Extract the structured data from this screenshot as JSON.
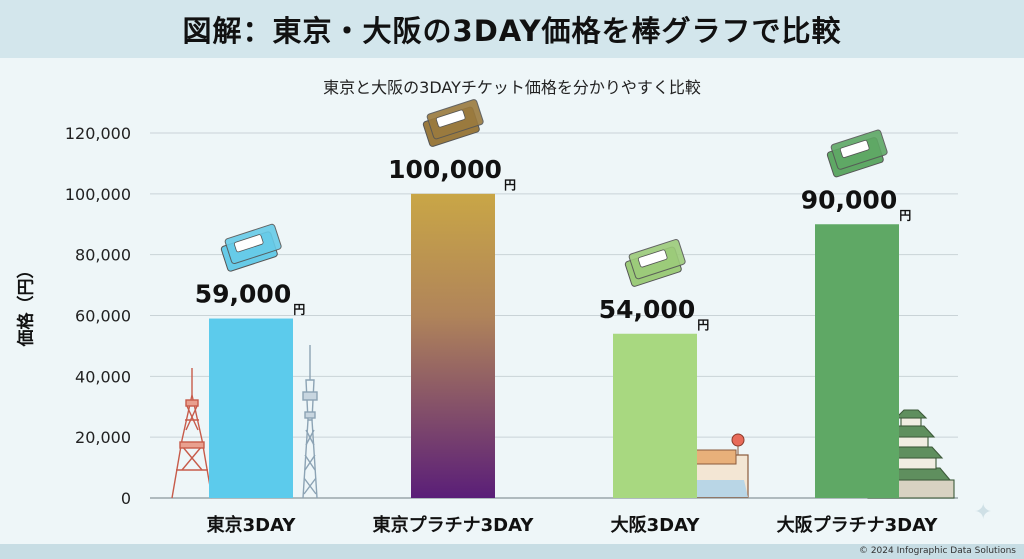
{
  "header": {
    "title": "図解：東京・大阪の3DAY価格を棒グラフで比較",
    "subtitle": "東京と大阪の3DAYチケット価格を分かりやすく比較"
  },
  "footer": {
    "copyright": "© 2024 Infographic Data Solutions"
  },
  "chart_data": {
    "type": "bar",
    "title": "図解：東京・大阪の3DAY価格を棒グラフで比較",
    "subtitle": "東京と大阪の3DAYチケット価格を分かりやすく比較",
    "xlabel": "",
    "ylabel": "価格（円）",
    "ylim": [
      0,
      120000
    ],
    "yticks": [
      0,
      20000,
      40000,
      60000,
      80000,
      100000,
      120000
    ],
    "ytick_labels": [
      "0",
      "20,000",
      "40,000",
      "60,000",
      "80,000",
      "100,000",
      "120,000"
    ],
    "grid": true,
    "categories": [
      "東京3DAY",
      "東京プラチナ3DAY",
      "大阪3DAY",
      "大阪プラチナ3DAY"
    ],
    "values": [
      59000,
      100000,
      54000,
      90000
    ],
    "value_labels": [
      "59,000",
      "100,000",
      "54,000",
      "90,000"
    ],
    "unit": "円",
    "colors": [
      "#5ccbec",
      "gradient:#c9a646-#5a1e78",
      "#a8d880",
      "#5fa865"
    ],
    "ticket_colors": [
      "#67cbe8",
      "#9a7a3e",
      "#9ccb7a",
      "#5fa865"
    ]
  }
}
